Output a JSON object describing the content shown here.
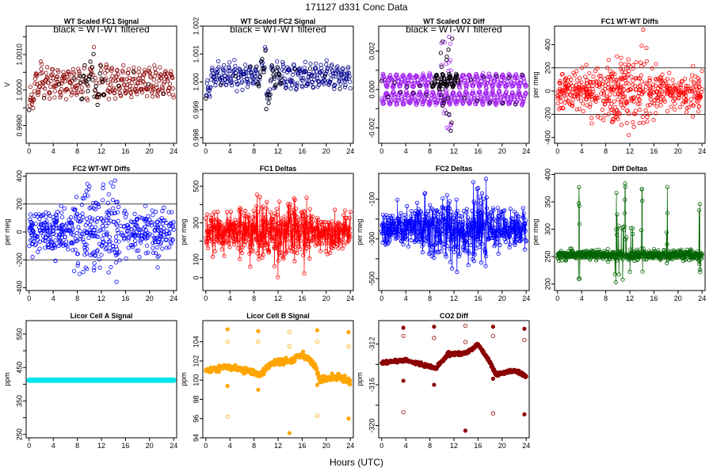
{
  "page": {
    "title": "171127   d331   Conc Data",
    "xlabel": "Hours (UTC)"
  },
  "chart_data": [
    {
      "id": "p1",
      "type": "scatter",
      "title": "WT Scaled FC1 Signal",
      "subtitle": "black = WT-WT filtered",
      "ylabel": "V",
      "color": "#8b0000",
      "overlay_color": "#000000",
      "series_kind": "wavy",
      "center": 1.0002,
      "amp": 0.0003,
      "noise": 0.0002,
      "spike": {
        "x": 10.8,
        "y_max": 1.0014,
        "y_min": 0.9994
      },
      "ylim": [
        0.9985,
        1.0018
      ],
      "yticks": [
        0.999,
        1.0,
        1.001
      ],
      "yticklabels": [
        "0.9990",
        "1.0000",
        "1.0010"
      ],
      "minor_yticks": [
        0.9995,
        1.0005,
        1.0015
      ],
      "xlim": [
        -0.5,
        24.5
      ],
      "xticks": [
        0,
        4,
        8,
        12,
        16,
        20,
        24
      ],
      "col": 0,
      "row": 0
    },
    {
      "id": "p2",
      "type": "scatter",
      "title": "WT Scaled FC2 Signal",
      "subtitle": "black = WT-WT filtered",
      "ylabel": "",
      "color": "#00008b",
      "overlay_color": "#000000",
      "series_kind": "wavy",
      "center": 1.0002,
      "amp": 0.0003,
      "noise": 0.0002,
      "spike": {
        "x": 10.0,
        "y_max": 1.0017,
        "y_min": 0.9985
      },
      "ylim": [
        0.9978,
        1.002
      ],
      "yticks": [
        0.998,
        0.999,
        1.0,
        1.001,
        1.002
      ],
      "yticklabels": [
        "0.998",
        "0.999",
        "1.000",
        "1.001",
        "1.002"
      ],
      "minor_yticks": [],
      "xlim": [
        -0.5,
        24.5
      ],
      "xticks": [
        0,
        4,
        8,
        12,
        16,
        20,
        24
      ],
      "col": 1,
      "row": 0
    },
    {
      "id": "p3",
      "type": "scatter",
      "title": "WT Scaled O2 Diff",
      "subtitle": "black = WT-WT filtered",
      "ylabel": "",
      "color": "#a020f0",
      "overlay_color": "#000000",
      "series_kind": "double_wave",
      "center": 0.0,
      "amp": 0.0003,
      "noise": 5e-05,
      "spike": {
        "x": 10.8,
        "y_max": 0.0028,
        "y_min": -0.0022
      },
      "ylim": [
        -0.0028,
        0.0033
      ],
      "yticks": [
        -0.002,
        0.0,
        0.002
      ],
      "yticklabels": [
        "-0.002",
        "0.000",
        "0.002"
      ],
      "minor_yticks": [
        -0.001,
        0.001
      ],
      "xlim": [
        -0.5,
        24.5
      ],
      "xticks": [
        0,
        4,
        8,
        12,
        16,
        20,
        24
      ],
      "col": 2,
      "row": 0
    },
    {
      "id": "p4",
      "type": "scatter",
      "title": "FC1 WT-WT Diffs",
      "subtitle": "",
      "ylabel": "per meg",
      "color": "#ff0000",
      "series_kind": "cloud",
      "center": 0,
      "amp": 0,
      "noise": 110,
      "hlines": [
        200,
        -200
      ],
      "ylim": [
        -450,
        560
      ],
      "yticks": [
        -400,
        -200,
        0,
        200,
        400
      ],
      "yticklabels": [
        "-400",
        "-200",
        "0",
        "200",
        "400"
      ],
      "minor_yticks": [],
      "xlim": [
        -0.5,
        24.5
      ],
      "xticks": [
        0,
        4,
        8,
        12,
        16,
        20,
        24
      ],
      "col": 3,
      "row": 0
    },
    {
      "id": "p5",
      "type": "scatter",
      "title": "FC2 WT-WT Diffs",
      "subtitle": "",
      "ylabel": "per meg",
      "color": "#0000ff",
      "series_kind": "cloud",
      "center": 0,
      "amp": 0,
      "noise": 110,
      "hlines": [
        200,
        -200
      ],
      "ylim": [
        -420,
        420
      ],
      "yticks": [
        -400,
        -200,
        0,
        200,
        400
      ],
      "yticklabels": [
        "-400",
        "-200",
        "0",
        "200",
        "400"
      ],
      "minor_yticks": [],
      "xlim": [
        -0.5,
        24.5
      ],
      "xticks": [
        0,
        4,
        8,
        12,
        16,
        20,
        24
      ],
      "col": 0,
      "row": 1
    },
    {
      "id": "p6",
      "type": "line",
      "title": "FC1 Deltas",
      "subtitle": "",
      "ylabel": "per meg",
      "color": "#ff0000",
      "series_kind": "noisy_line",
      "center": 250,
      "amp": 0,
      "noise": 90,
      "ylim": [
        -70,
        570
      ],
      "yticks": [
        0,
        100,
        300,
        500
      ],
      "yticklabels": [
        "0",
        "100",
        "300",
        "500"
      ],
      "minor_yticks": [
        200,
        400
      ],
      "xlim": [
        -0.5,
        24.5
      ],
      "xticks": [
        0,
        4,
        8,
        12,
        16,
        20,
        24
      ],
      "col": 1,
      "row": 1
    },
    {
      "id": "p7",
      "type": "line",
      "title": "FC2 Deltas",
      "subtitle": "",
      "ylabel": "per meg",
      "color": "#0000ff",
      "series_kind": "noisy_line",
      "center": -250,
      "amp": 0,
      "noise": 90,
      "ylim": [
        -560,
        30
      ],
      "yticks": [
        -100,
        -300,
        -500
      ],
      "yticklabels": [
        "-100",
        "-300",
        "-500"
      ],
      "minor_yticks": [
        -200,
        -400
      ],
      "xlim": [
        -0.5,
        24.5
      ],
      "xticks": [
        0,
        4,
        8,
        12,
        16,
        20,
        24
      ],
      "col": 2,
      "row": 1
    },
    {
      "id": "p8",
      "type": "line",
      "title": "Diff Deltas",
      "subtitle": "",
      "ylabel": "per meg",
      "color": "#006400",
      "series_kind": "steady_spikes",
      "center": 253,
      "amp": 0,
      "noise": 6,
      "spikes": [
        3.6,
        9.8,
        11.2,
        14.0,
        18.2,
        23.6
      ],
      "ylim": [
        188,
        402
      ],
      "yticks": [
        200,
        250,
        300,
        350,
        400
      ],
      "yticklabels": [
        "200",
        "250",
        "300",
        "350",
        "400"
      ],
      "minor_yticks": [],
      "xlim": [
        -0.5,
        24.5
      ],
      "xticks": [
        0,
        4,
        8,
        12,
        16,
        20,
        24
      ],
      "col": 3,
      "row": 1
    },
    {
      "id": "p9",
      "type": "scatter",
      "title": "Licor Cell A Signal",
      "subtitle": "",
      "ylabel": "ppm",
      "color": "#00e5ee",
      "series_kind": "flat",
      "center": 412,
      "amp": 0,
      "noise": 0,
      "ylim": [
        240,
        590
      ],
      "yticks": [
        250,
        350,
        450,
        550
      ],
      "yticklabels": [
        "250",
        "350",
        "450",
        "550"
      ],
      "minor_yticks": [
        300,
        400,
        500
      ],
      "xlim": [
        -0.5,
        24.5
      ],
      "xticks": [
        0,
        4,
        8,
        12,
        16,
        20,
        24
      ],
      "col": 0,
      "row": 2
    },
    {
      "id": "p10",
      "type": "scatter",
      "title": "Licor Cell B Signal",
      "subtitle": "",
      "ylabel": "ppm",
      "color": "#ffa500",
      "series_kind": "trend_outliers",
      "center": 101,
      "amp": 0,
      "noise": 0.15,
      "trend": [
        [
          0,
          101.0
        ],
        [
          4,
          101.4
        ],
        [
          8,
          100.8
        ],
        [
          9,
          100.6
        ],
        [
          11,
          101.8
        ],
        [
          14,
          102.0
        ],
        [
          16,
          102.8
        ],
        [
          18,
          101.6
        ],
        [
          19,
          100.0
        ],
        [
          22,
          100.4
        ],
        [
          24,
          99.8
        ]
      ],
      "outliers": [
        [
          3.6,
          105.3
        ],
        [
          3.6,
          104.0
        ],
        [
          3.6,
          99.4
        ],
        [
          3.6,
          96.2
        ],
        [
          8.7,
          105.1
        ],
        [
          8.7,
          104.0
        ],
        [
          8.7,
          99.0
        ],
        [
          13.9,
          105.0
        ],
        [
          13.9,
          94.5
        ],
        [
          13.9,
          103.5
        ],
        [
          18.5,
          105.2
        ],
        [
          18.5,
          104.0
        ],
        [
          18.5,
          99.5
        ],
        [
          18.5,
          96.3
        ],
        [
          23.7,
          105.0
        ],
        [
          23.7,
          103.5
        ],
        [
          23.7,
          96.0
        ]
      ],
      "ylim": [
        94,
        106.2
      ],
      "yticks": [
        94,
        96,
        98,
        100,
        102,
        104
      ],
      "yticklabels": [
        "94",
        "96",
        "98",
        "100",
        "102",
        "104"
      ],
      "minor_yticks": [],
      "xlim": [
        -0.5,
        24.5
      ],
      "xticks": [
        0,
        4,
        8,
        12,
        16,
        20,
        24
      ],
      "col": 1,
      "row": 2
    },
    {
      "id": "p11",
      "type": "scatter",
      "title": "CO2 Diff",
      "subtitle": "",
      "ylabel": "ppm",
      "color": "#8b0000",
      "series_kind": "trend_outliers",
      "center": -313.8,
      "amp": 0,
      "noise": 0.08,
      "trend": [
        [
          0,
          -313.8
        ],
        [
          4,
          -313.6
        ],
        [
          8,
          -314.2
        ],
        [
          9,
          -314.4
        ],
        [
          11,
          -313.0
        ],
        [
          14,
          -312.9
        ],
        [
          16,
          -312.0
        ],
        [
          18,
          -313.8
        ],
        [
          19,
          -315.0
        ],
        [
          22,
          -314.6
        ],
        [
          24,
          -315.2
        ]
      ],
      "outliers": [
        [
          3.6,
          -310.4
        ],
        [
          3.6,
          -311.2
        ],
        [
          3.6,
          -315.6
        ],
        [
          3.6,
          -318.7
        ],
        [
          8.7,
          -310.3
        ],
        [
          8.7,
          -311.4
        ],
        [
          8.7,
          -316.0
        ],
        [
          13.9,
          -310.2
        ],
        [
          13.9,
          -320.5
        ],
        [
          13.9,
          -311.8
        ],
        [
          18.5,
          -310.3
        ],
        [
          18.5,
          -311.2
        ],
        [
          18.5,
          -315.4
        ],
        [
          18.5,
          -318.8
        ],
        [
          23.7,
          -310.5
        ],
        [
          23.7,
          -311.6
        ],
        [
          23.7,
          -318.9
        ]
      ],
      "ylim": [
        -321.2,
        -309.7
      ],
      "yticks": [
        -312,
        -316,
        -320
      ],
      "yticklabels": [
        "-312",
        "-316",
        "-320"
      ],
      "minor_yticks": [
        -314,
        -318
      ],
      "xlim": [
        -0.5,
        24.5
      ],
      "xticks": [
        0,
        4,
        8,
        12,
        16,
        20,
        24
      ],
      "col": 2,
      "row": 2
    }
  ]
}
